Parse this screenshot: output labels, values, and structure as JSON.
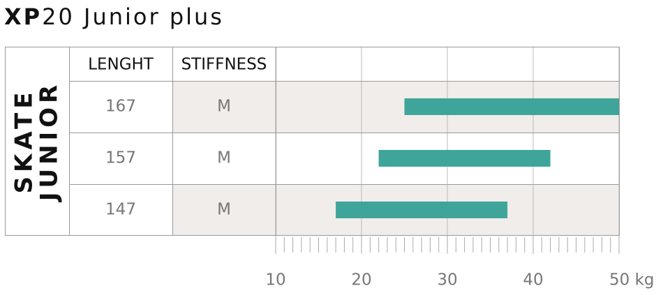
{
  "chart_data": {
    "type": "range_bar",
    "title_bold": "XP",
    "title": "20 Junior plus",
    "row_group_label": [
      "SKATE",
      "JUNIOR"
    ],
    "columns": [
      "LENGHT",
      "STIFFNESS"
    ],
    "categories": [
      167,
      157,
      147
    ],
    "stiffness": [
      "M",
      "M",
      "M"
    ],
    "series": [
      {
        "color": "#3fa59a",
        "low": [
          25,
          22,
          17
        ],
        "high": [
          50,
          42,
          37
        ]
      }
    ],
    "xlim": [
      10,
      50
    ],
    "xticks": [
      10,
      20,
      30,
      40,
      {
        "value": 50,
        "label": "50 kg"
      }
    ],
    "grid": true
  }
}
